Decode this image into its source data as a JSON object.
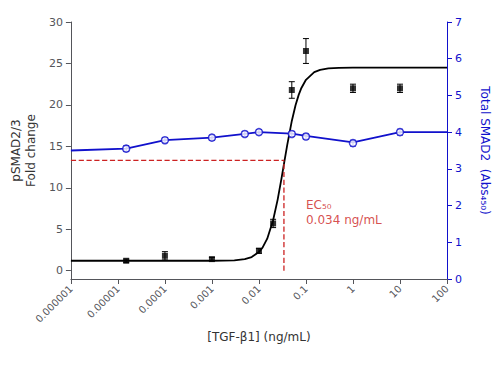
{
  "chart_data": {
    "type": "line",
    "xlabel": "[TGF-β1] (ng/mL)",
    "ylabel": "pSMAD2/3\nFold change",
    "y2label": "Total SMAD2  (Abs₄₅₀)",
    "log": "x",
    "grid": false,
    "xlim": [
      1e-06,
      100
    ],
    "xticks": [
      1e-06,
      1e-05,
      0.0001,
      0.001,
      0.01,
      0.1,
      1,
      10,
      100
    ],
    "ylim": [
      -1,
      30
    ],
    "yticks": [
      0,
      5,
      10,
      15,
      20,
      25,
      30
    ],
    "y2lim": [
      0,
      7
    ],
    "y2ticks": [
      0,
      1,
      2,
      3,
      4,
      5,
      6,
      7
    ],
    "series": [
      {
        "type": "line",
        "color": "#000000",
        "line_style": "solid",
        "x": [
          1e-06,
          1e-05,
          0.0001,
          0.001,
          0.003,
          0.005,
          0.007,
          0.01,
          0.012,
          0.015,
          0.02,
          0.025,
          0.03,
          0.034,
          0.04,
          0.05,
          0.06,
          0.07,
          0.08,
          0.1,
          0.15,
          0.2,
          0.3,
          0.5,
          1,
          10,
          100
        ],
        "values": [
          1.2,
          1.2,
          1.2,
          1.2035,
          1.254,
          1.392,
          1.64,
          2.244,
          2.805,
          3.867,
          6.087,
          8.58,
          11.042,
          12.85,
          15.185,
          18.068,
          19.963,
          21.21,
          22.045,
          23.029,
          23.944,
          24.226,
          24.4,
          24.472,
          24.495,
          24.5,
          24.5
        ]
      },
      {
        "type": "scatter",
        "marker": "square",
        "color": "#000000",
        "x": [
          1.5e-05,
          0.0001,
          0.001,
          0.01,
          0.02,
          0.05,
          0.1,
          1.0,
          10.0
        ],
        "values": [
          1.2,
          1.8,
          1.4,
          2.4,
          5.7,
          21.8,
          26.5,
          22.0,
          22.0
        ],
        "yerr": [
          0.2,
          0.5,
          0.2,
          0.3,
          0.5,
          1.0,
          1.5,
          0.5,
          0.5
        ]
      },
      {
        "type": "line",
        "color": "#cc2222",
        "line_style": "dashed",
        "x": [
          1e-06,
          0.034
        ],
        "values": [
          13.3,
          13.3
        ]
      },
      {
        "type": "line",
        "color": "#cc2222",
        "line_style": "dashed",
        "x": [
          0.034,
          0.034
        ],
        "values": [
          0,
          13.3
        ]
      },
      {
        "type": "line",
        "axis": "y2",
        "color": "#1111cc",
        "line_style": "solid",
        "x": [
          1e-06,
          1.5e-05,
          0.0001,
          0.001,
          0.005,
          0.01,
          0.05,
          0.1,
          1.0,
          10.0,
          100.0
        ],
        "values": [
          3.5,
          3.55,
          3.78,
          3.85,
          3.95,
          4.0,
          3.96,
          3.9,
          3.72,
          4.0,
          4.0
        ]
      },
      {
        "type": "scatter",
        "axis": "y2",
        "marker": "circle",
        "color": "#1111cc",
        "x": [
          1.5e-05,
          0.0001,
          0.001,
          0.005,
          0.01,
          0.05,
          0.1,
          1.0,
          10.0
        ],
        "values": [
          3.55,
          3.78,
          3.85,
          3.95,
          4.0,
          3.95,
          3.88,
          3.7,
          4.0
        ],
        "yerr": [
          0.08,
          0.07,
          0.07,
          0.07,
          0.07,
          0.07,
          0.07,
          0.08,
          0.08
        ]
      }
    ],
    "annotations": [
      {
        "text": "EC₅₀\n0.034 ng/mL",
        "x": 0.1,
        "y": 7.0,
        "color": "#cc2222"
      }
    ]
  }
}
